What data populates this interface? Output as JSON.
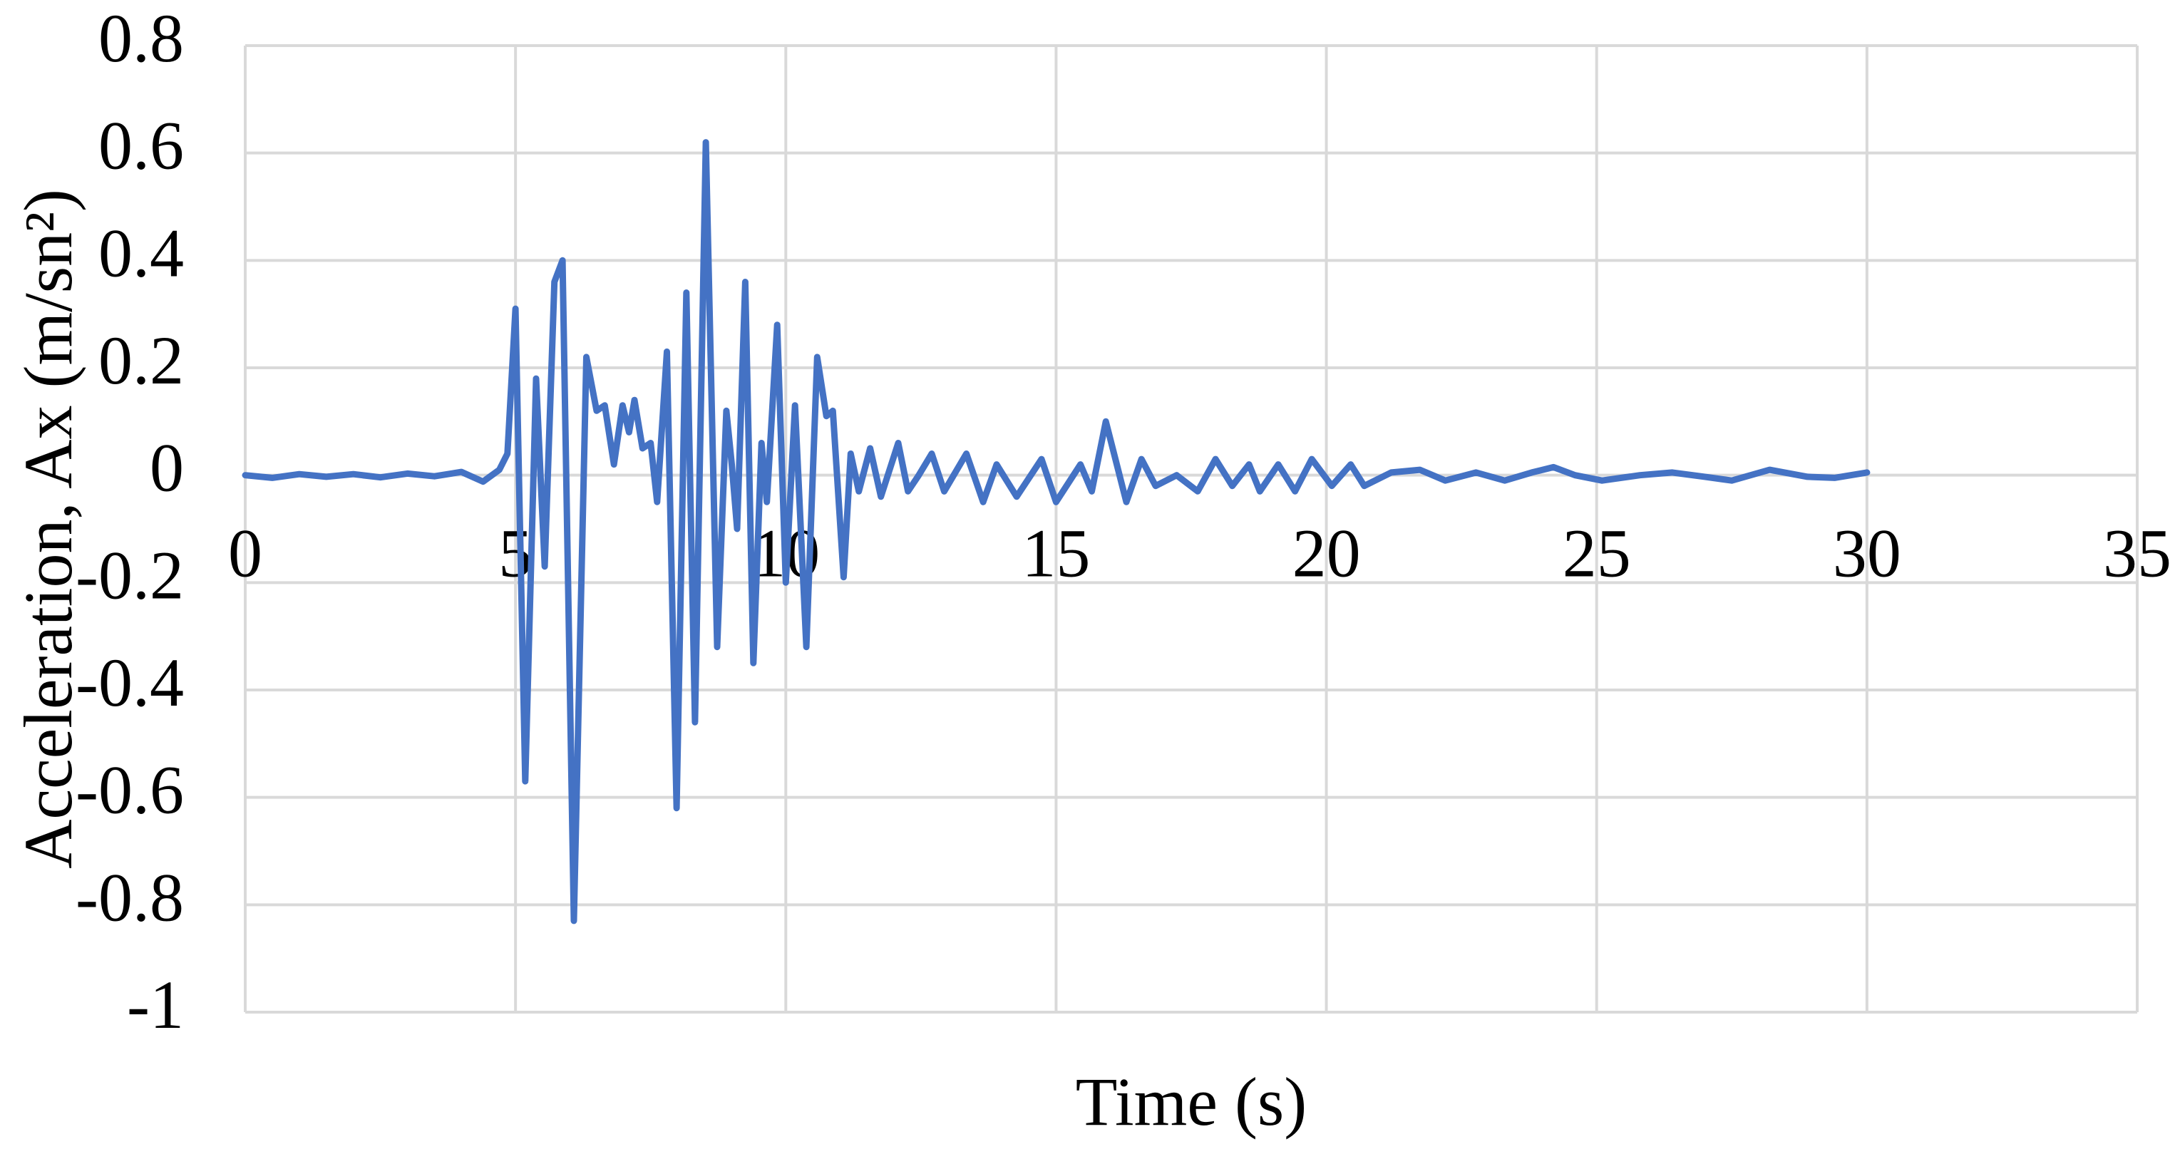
{
  "chart_data": {
    "type": "line",
    "x_label": "Time (s)",
    "y_label": "Acceleration, Ax (m/sn²)",
    "x": [
      0,
      0.5,
      1,
      1.5,
      2,
      2.5,
      3,
      3.5,
      4,
      4.4,
      4.7,
      4.85,
      5.0,
      5.18,
      5.38,
      5.54,
      5.72,
      5.87,
      6.08,
      6.31,
      6.5,
      6.65,
      6.82,
      6.98,
      7.1,
      7.2,
      7.35,
      7.5,
      7.62,
      7.8,
      7.98,
      8.16,
      8.32,
      8.52,
      8.73,
      8.9,
      9.0,
      9.1,
      9.25,
      9.4,
      9.55,
      9.65,
      9.84,
      10.0,
      10.17,
      10.38,
      10.58,
      10.75,
      10.87,
      11.07,
      11.2,
      11.35,
      11.56,
      11.76,
      12.08,
      12.26,
      12.46,
      12.7,
      12.93,
      13.34,
      13.65,
      13.9,
      14.27,
      14.73,
      15.0,
      15.45,
      15.66,
      15.92,
      16.3,
      16.58,
      16.84,
      17.23,
      17.62,
      17.95,
      18.26,
      18.57,
      18.77,
      19.11,
      19.42,
      19.73,
      20.1,
      20.45,
      20.7,
      21.2,
      21.73,
      22.2,
      22.77,
      23.3,
      23.8,
      24.2,
      24.6,
      25.1,
      25.8,
      26.4,
      27.0,
      27.5,
      28.2,
      28.9,
      29.4,
      30.0
    ],
    "values": [
      0,
      -0.005,
      0.002,
      -0.003,
      0.002,
      -0.004,
      0.003,
      -0.002,
      0.006,
      -0.012,
      0.01,
      0.04,
      0.31,
      -0.57,
      0.18,
      -0.17,
      0.36,
      0.4,
      -0.83,
      0.22,
      0.12,
      0.13,
      0.02,
      0.13,
      0.08,
      0.14,
      0.05,
      0.06,
      -0.05,
      0.23,
      -0.62,
      0.34,
      -0.46,
      0.62,
      -0.32,
      0.12,
      0.02,
      -0.1,
      0.36,
      -0.35,
      0.06,
      -0.05,
      0.28,
      -0.2,
      0.13,
      -0.32,
      0.22,
      0.11,
      0.12,
      -0.19,
      0.04,
      -0.03,
      0.05,
      -0.04,
      0.06,
      -0.03,
      0,
      0.04,
      -0.03,
      0.04,
      -0.05,
      0.02,
      -0.04,
      0.03,
      -0.05,
      0.02,
      -0.03,
      0.1,
      -0.05,
      0.03,
      -0.02,
      0,
      -0.03,
      0.03,
      -0.02,
      0.02,
      -0.03,
      0.02,
      -0.03,
      0.03,
      -0.02,
      0.02,
      -0.02,
      0.005,
      0.01,
      -0.01,
      0.005,
      -0.01,
      0.005,
      0.015,
      0,
      -0.01,
      0,
      0.005,
      -0.003,
      -0.01,
      0.01,
      -0.003,
      -0.005,
      0.005
    ],
    "color": "#4472c4",
    "xlim": [
      0,
      35
    ],
    "xticks": [
      0,
      5,
      10,
      15,
      20,
      25,
      30,
      35
    ],
    "ylim": [
      -1,
      0.8
    ],
    "yticks": [
      -1,
      -0.8,
      -0.6,
      -0.4,
      -0.2,
      0,
      0.2,
      0.4,
      0.6,
      0.8
    ],
    "grid": true
  }
}
